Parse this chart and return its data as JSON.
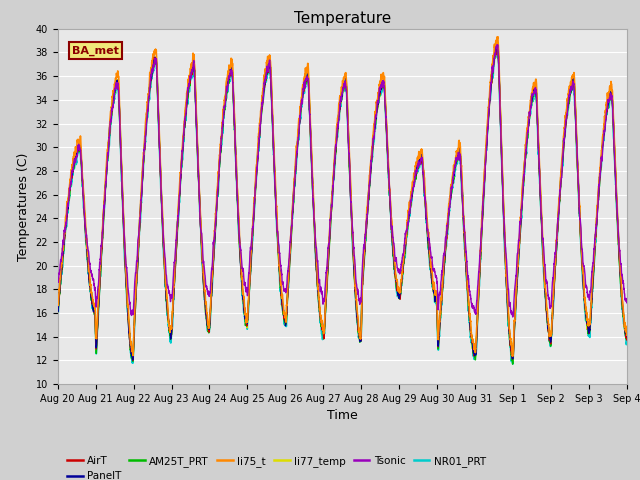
{
  "title": "Temperature",
  "xlabel": "Time",
  "ylabel": "Temperatures (C)",
  "ylim": [
    10,
    40
  ],
  "yticks": [
    10,
    12,
    14,
    16,
    18,
    20,
    22,
    24,
    26,
    28,
    30,
    32,
    34,
    36,
    38,
    40
  ],
  "series": {
    "AirT": {
      "color": "#cc0000",
      "lw": 1.0,
      "zorder": 4
    },
    "PanelT": {
      "color": "#000099",
      "lw": 1.0,
      "zorder": 5
    },
    "AM25T_PRT": {
      "color": "#00bb00",
      "lw": 1.0,
      "zorder": 3
    },
    "li75_t": {
      "color": "#ff8800",
      "lw": 1.2,
      "zorder": 6
    },
    "li77_temp": {
      "color": "#dddd00",
      "lw": 1.2,
      "zorder": 2
    },
    "Tsonic": {
      "color": "#9900bb",
      "lw": 1.0,
      "zorder": 7
    },
    "NR01_PRT": {
      "color": "#00cccc",
      "lw": 1.3,
      "zorder": 1
    }
  },
  "annotation_text": "BA_met",
  "fig_facecolor": "#d0d0d0",
  "ax_facecolor": "#e8e8e8",
  "grid_color": "#ffffff",
  "spine_color": "#aaaaaa",
  "tick_fontsize": 7,
  "label_fontsize": 9,
  "title_fontsize": 11,
  "n_days": 15,
  "n_per_day": 288,
  "tick_labels": [
    "Aug 20",
    "Aug 21",
    "Aug 22",
    "Aug 23",
    "Aug 24",
    "Aug 25",
    "Aug 26",
    "Aug 27",
    "Aug 28",
    "Aug 29",
    "Aug 30",
    "Aug 31",
    "Sep 1",
    "Sep 2",
    "Sep 3",
    "Sep 4"
  ],
  "legend_order": [
    "AirT",
    "PanelT",
    "AM25T_PRT",
    "li75_t",
    "li77_temp",
    "Tsonic",
    "NR01_PRT"
  ]
}
